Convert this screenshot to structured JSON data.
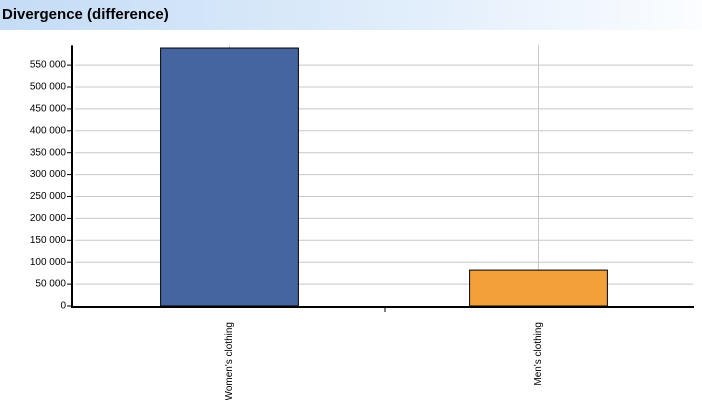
{
  "header": {
    "title": "Divergence (difference)"
  },
  "chart_data": {
    "type": "bar",
    "categories": [
      "Women's clothing",
      "Men's clothing"
    ],
    "values": [
      589000,
      82000
    ],
    "colors": [
      "#4465a0",
      "#f4a03a"
    ],
    "ylim": [
      0,
      595000
    ],
    "yticks": [
      0,
      {
        "value": 50000,
        "label": "50 000"
      },
      {
        "value": 100000,
        "label": "100 000"
      },
      {
        "value": 150000,
        "label": "150 000"
      },
      {
        "value": 200000,
        "label": "200 000"
      },
      {
        "value": 250000,
        "label": "250 000"
      },
      {
        "value": 300000,
        "label": "300 000"
      },
      {
        "value": 350000,
        "label": "350 000"
      },
      {
        "value": 400000,
        "label": "400 000"
      },
      {
        "value": 450000,
        "label": "450 000"
      },
      {
        "value": 500000,
        "label": "500 000"
      },
      {
        "value": 550000,
        "label": "550 000"
      }
    ],
    "grid": true
  }
}
